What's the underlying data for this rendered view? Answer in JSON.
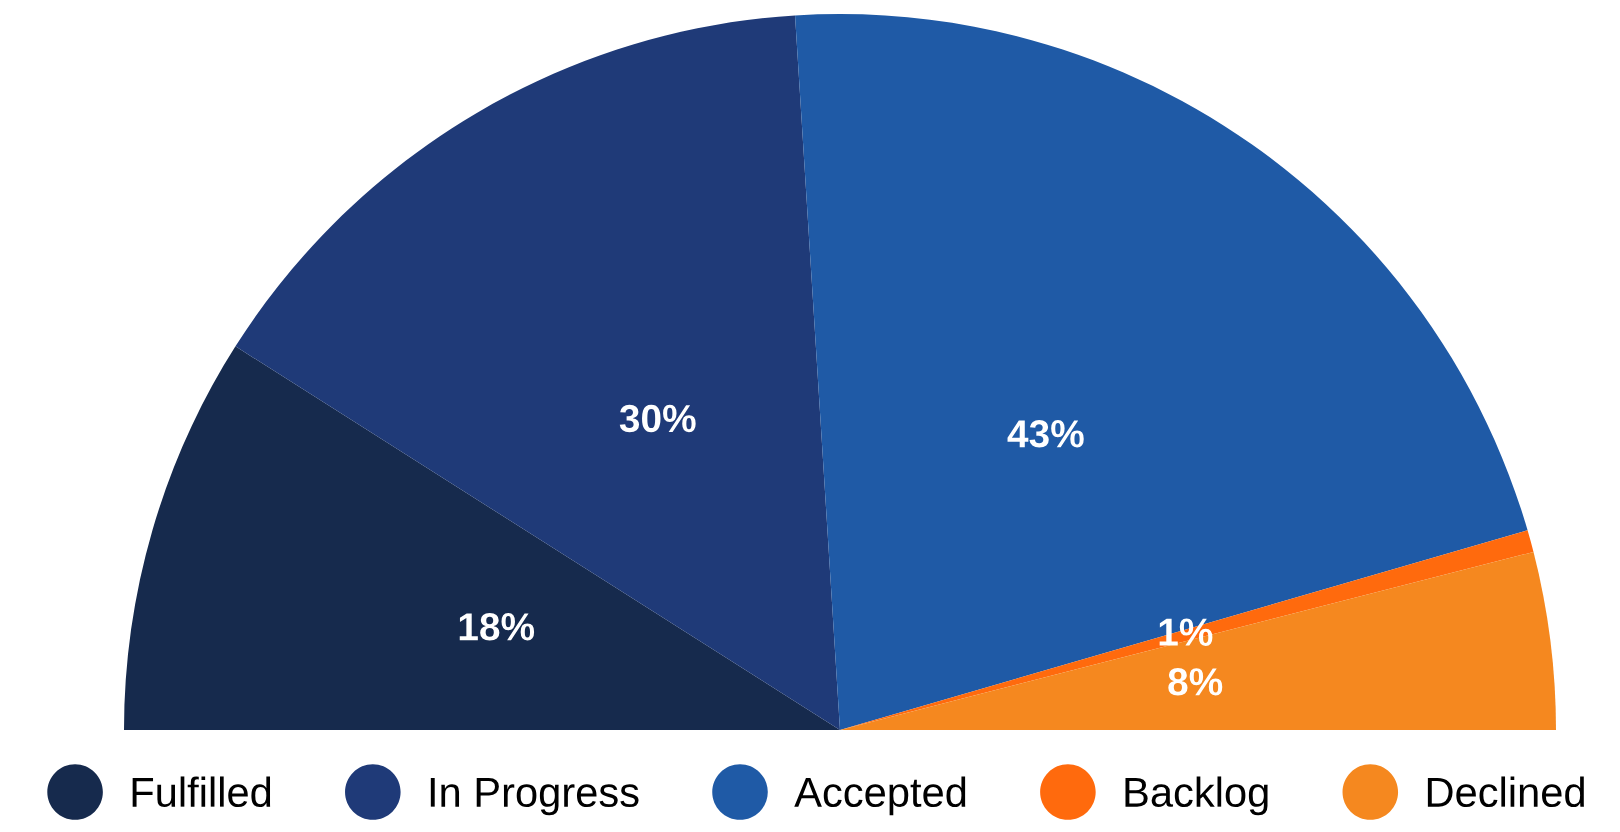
{
  "chart_data": {
    "type": "pie",
    "categories": [
      "Fulfilled",
      "In Progress",
      "Accepted",
      "Backlog",
      "Declined"
    ],
    "values": [
      18,
      30,
      43,
      1,
      8
    ],
    "value_labels": [
      "18%",
      "30%",
      "43%",
      "1%",
      "8%"
    ],
    "colors": [
      "#162a4d",
      "#1f3a78",
      "#1f5aa6",
      "#ff6a0d",
      "#f5881f"
    ],
    "legend": "bottom"
  }
}
